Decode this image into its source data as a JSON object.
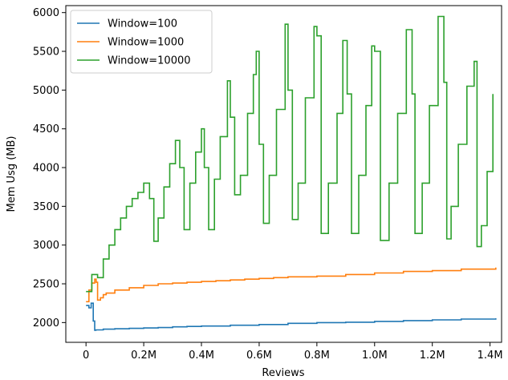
{
  "chart_data": {
    "type": "line",
    "title": "",
    "xlabel": "Reviews",
    "ylabel": "Mem Usg (MB)",
    "xlim": [
      -70000,
      1440000
    ],
    "ylim": [
      1745,
      6090
    ],
    "xticks": [
      0,
      200000,
      400000,
      600000,
      800000,
      1000000,
      1200000,
      1400000
    ],
    "xtick_labels": [
      "0",
      "0.2M",
      "0.4M",
      "0.6M",
      "0.8M",
      "1.0M",
      "1.2M",
      "1.4M"
    ],
    "yticks": [
      2000,
      2500,
      3000,
      3500,
      4000,
      4500,
      5000,
      5500,
      6000
    ],
    "ytick_labels": [
      "2000",
      "2500",
      "3000",
      "3500",
      "4000",
      "4500",
      "5000",
      "5500",
      "6000"
    ],
    "grid": false,
    "legend_position": "top-left",
    "line_style": "step",
    "series": [
      {
        "name": "Window=100",
        "color": "#1f77b4",
        "x": [
          0,
          10000,
          18000,
          25000,
          30000,
          34000,
          60000,
          100000,
          150000,
          200000,
          250000,
          300000,
          350000,
          400000,
          500000,
          600000,
          700000,
          800000,
          900000,
          1000000,
          1100000,
          1200000,
          1300000,
          1420000
        ],
        "y": [
          2220,
          2190,
          2250,
          2020,
          1900,
          1905,
          1915,
          1920,
          1925,
          1930,
          1935,
          1945,
          1950,
          1955,
          1965,
          1975,
          1990,
          2000,
          2005,
          2015,
          2025,
          2035,
          2045,
          2055
        ]
      },
      {
        "name": "Window=1000",
        "color": "#ff7f0e",
        "x": [
          0,
          10000,
          20000,
          30000,
          35000,
          40000,
          50000,
          60000,
          70000,
          100000,
          150000,
          200000,
          250000,
          300000,
          350000,
          400000,
          450000,
          500000,
          550000,
          600000,
          650000,
          700000,
          800000,
          900000,
          1000000,
          1100000,
          1200000,
          1300000,
          1420000
        ],
        "y": [
          2270,
          2420,
          2510,
          2560,
          2520,
          2290,
          2320,
          2360,
          2380,
          2420,
          2450,
          2480,
          2500,
          2510,
          2520,
          2530,
          2540,
          2550,
          2560,
          2570,
          2580,
          2590,
          2600,
          2620,
          2640,
          2660,
          2670,
          2690,
          2710
        ]
      },
      {
        "name": "Window=10000",
        "color": "#2ca02c",
        "x": [
          0,
          20000,
          40000,
          60000,
          80000,
          100000,
          120000,
          140000,
          160000,
          180000,
          200000,
          220000,
          235000,
          250000,
          270000,
          290000,
          310000,
          325000,
          340000,
          360000,
          380000,
          400000,
          410000,
          425000,
          445000,
          465000,
          490000,
          500000,
          515000,
          535000,
          560000,
          580000,
          590000,
          600000,
          615000,
          635000,
          660000,
          690000,
          700000,
          715000,
          735000,
          760000,
          790000,
          800000,
          815000,
          840000,
          870000,
          890000,
          905000,
          920000,
          945000,
          970000,
          990000,
          1000000,
          1020000,
          1050000,
          1080000,
          1110000,
          1130000,
          1140000,
          1165000,
          1190000,
          1220000,
          1240000,
          1250000,
          1265000,
          1290000,
          1320000,
          1345000,
          1355000,
          1370000,
          1390000,
          1410000
        ],
        "y": [
          2400,
          2620,
          2580,
          2820,
          3000,
          3200,
          3350,
          3500,
          3600,
          3680,
          3800,
          3600,
          3050,
          3350,
          3750,
          4050,
          4350,
          4000,
          3200,
          3800,
          4200,
          4500,
          4000,
          3200,
          3850,
          4400,
          5120,
          4650,
          3650,
          3900,
          4700,
          5200,
          5500,
          4300,
          3280,
          3900,
          4750,
          5850,
          5000,
          3330,
          3800,
          4900,
          5820,
          5700,
          3150,
          3800,
          4700,
          5640,
          4950,
          3150,
          3900,
          4800,
          5570,
          5500,
          3060,
          3800,
          4700,
          5780,
          4950,
          3150,
          3800,
          4800,
          5950,
          5100,
          3080,
          3500,
          4300,
          5050,
          5370,
          2980,
          3250,
          3950,
          4950
        ]
      }
    ]
  }
}
